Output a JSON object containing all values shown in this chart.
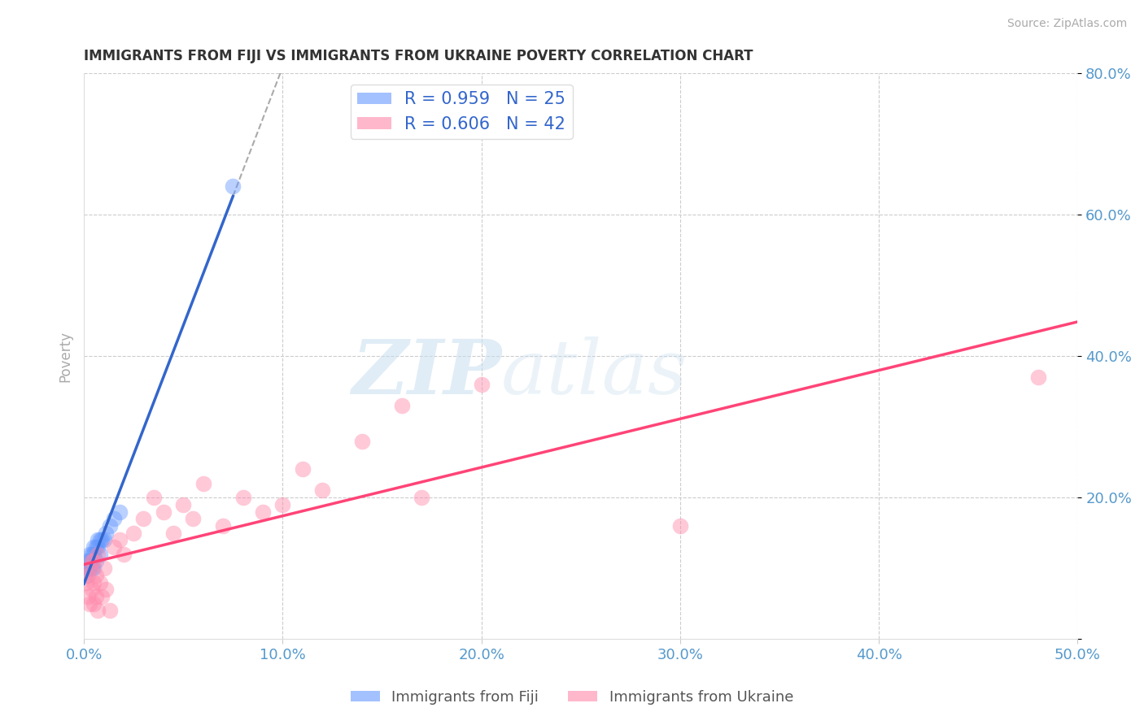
{
  "title": "IMMIGRANTS FROM FIJI VS IMMIGRANTS FROM UKRAINE POVERTY CORRELATION CHART",
  "source": "Source: ZipAtlas.com",
  "ylabel": "Poverty",
  "xlim": [
    0.0,
    0.5
  ],
  "ylim": [
    0.0,
    0.8
  ],
  "xticks": [
    0.0,
    0.1,
    0.2,
    0.3,
    0.4,
    0.5
  ],
  "yticks": [
    0.0,
    0.2,
    0.4,
    0.6,
    0.8
  ],
  "xtick_labels": [
    "0.0%",
    "10.0%",
    "20.0%",
    "30.0%",
    "40.0%",
    "50.0%"
  ],
  "ytick_labels": [
    "",
    "20.0%",
    "40.0%",
    "60.0%",
    "80.0%"
  ],
  "fiji_color": "#6699ff",
  "ukraine_color": "#ff88aa",
  "fiji_line_color": "#3366cc",
  "ukraine_line_color": "#ff4477",
  "fiji_R": 0.959,
  "fiji_N": 25,
  "ukraine_R": 0.606,
  "ukraine_N": 42,
  "watermark_zip": "ZIP",
  "watermark_atlas": "atlas",
  "background_color": "#ffffff",
  "grid_color": "#cccccc",
  "fiji_scatter_x": [
    0.001,
    0.002,
    0.002,
    0.003,
    0.003,
    0.003,
    0.004,
    0.004,
    0.004,
    0.005,
    0.005,
    0.005,
    0.006,
    0.006,
    0.007,
    0.007,
    0.008,
    0.008,
    0.009,
    0.01,
    0.011,
    0.013,
    0.015,
    0.018,
    0.075
  ],
  "fiji_scatter_y": [
    0.09,
    0.1,
    0.11,
    0.1,
    0.11,
    0.12,
    0.1,
    0.11,
    0.12,
    0.1,
    0.12,
    0.13,
    0.11,
    0.13,
    0.13,
    0.14,
    0.12,
    0.14,
    0.14,
    0.14,
    0.15,
    0.16,
    0.17,
    0.18,
    0.64
  ],
  "ukraine_scatter_x": [
    0.001,
    0.002,
    0.002,
    0.003,
    0.003,
    0.004,
    0.004,
    0.005,
    0.005,
    0.005,
    0.006,
    0.006,
    0.007,
    0.007,
    0.008,
    0.009,
    0.01,
    0.011,
    0.013,
    0.015,
    0.018,
    0.02,
    0.025,
    0.03,
    0.035,
    0.04,
    0.045,
    0.05,
    0.055,
    0.06,
    0.07,
    0.08,
    0.09,
    0.1,
    0.11,
    0.12,
    0.14,
    0.16,
    0.17,
    0.2,
    0.3,
    0.48
  ],
  "ukraine_scatter_y": [
    0.08,
    0.06,
    0.09,
    0.05,
    0.1,
    0.07,
    0.11,
    0.05,
    0.08,
    0.11,
    0.06,
    0.09,
    0.04,
    0.12,
    0.08,
    0.06,
    0.1,
    0.07,
    0.04,
    0.13,
    0.14,
    0.12,
    0.15,
    0.17,
    0.2,
    0.18,
    0.15,
    0.19,
    0.17,
    0.22,
    0.16,
    0.2,
    0.18,
    0.19,
    0.24,
    0.21,
    0.28,
    0.33,
    0.2,
    0.36,
    0.16,
    0.37
  ],
  "title_color": "#333333",
  "tick_label_color": "#5599cc"
}
